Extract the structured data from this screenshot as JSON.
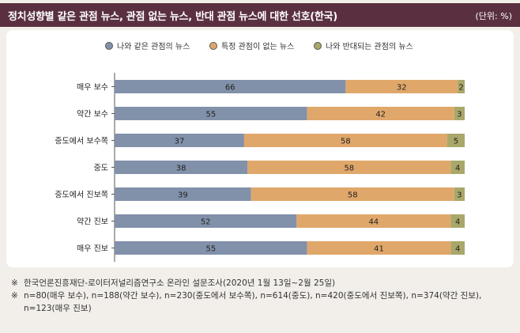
{
  "header": {
    "title": "정치성향별 같은 관점 뉴스, 관점 없는 뉴스, 반대 관점 뉴스에 대한 선호(한국)",
    "unit": "(단위: %)"
  },
  "colors": {
    "same": "#8291aa",
    "none": "#e0a76a",
    "opposite": "#a9a76a",
    "header_bg": "#5a3040"
  },
  "chart_data": {
    "type": "bar",
    "orientation": "horizontal",
    "stacked": true,
    "categories": [
      "매우 보수",
      "약간 보수",
      "중도에서 보수쪽",
      "중도",
      "중도에서 진보쪽",
      "약간 진보",
      "매우 진보"
    ],
    "series": [
      {
        "name": "나와 같은 관점의 뉴스",
        "color_key": "same",
        "values": [
          66,
          55,
          37,
          38,
          39,
          52,
          55
        ]
      },
      {
        "name": "특정 관점이 없는 뉴스",
        "color_key": "none",
        "values": [
          32,
          42,
          58,
          58,
          58,
          44,
          41
        ]
      },
      {
        "name": "나와 반대되는 관점의 뉴스",
        "color_key": "opposite",
        "values": [
          2,
          3,
          5,
          4,
          3,
          4,
          4
        ]
      }
    ],
    "xlim": [
      0,
      100
    ],
    "legend_position": "top-center",
    "grid": false
  },
  "notes": [
    {
      "mark": "※",
      "text": "한국언론진흥재단-로이터저널리즘연구소 온라인 설문조사(2020년 1월 13일~2월 25일)"
    },
    {
      "mark": "※",
      "text": "n=80(매우 보수), n=188(약간 보수), n=230(중도에서 보수쪽), n=614(중도), n=420(중도에서 진보쪽), n=374(약간 진보), n=123(매우 진보)"
    }
  ]
}
